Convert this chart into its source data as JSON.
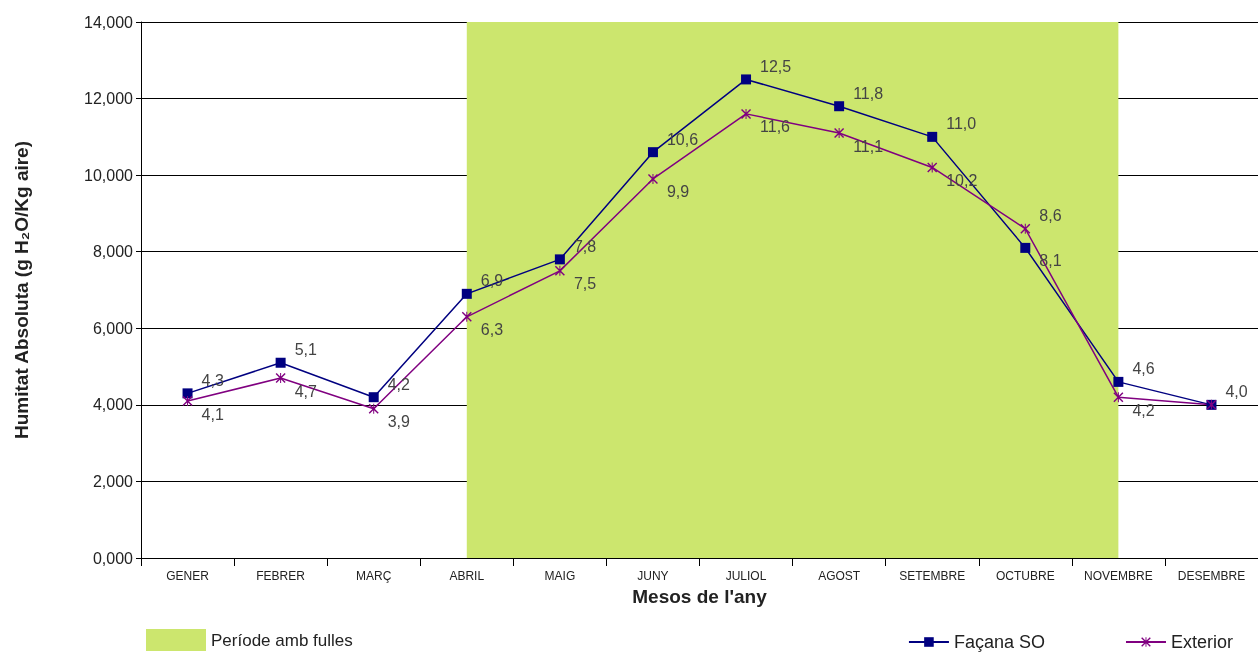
{
  "chart_data": {
    "type": "line",
    "ylabel": "Humitat Absoluta (g H₂O/Kg aire)",
    "xlabel": "Mesos de l'any",
    "categories": [
      "GENER",
      "FEBRER",
      "MARÇ",
      "ABRIL",
      "MAIG",
      "JUNY",
      "JULIOL",
      "AGOST",
      "SETEMBRE",
      "OCTUBRE",
      "NOVEMBRE",
      "DESEMBRE"
    ],
    "series": [
      {
        "name": "Façana SO",
        "color": "#000080",
        "marker": "square",
        "values": [
          4.3,
          5.1,
          4.2,
          6.9,
          7.8,
          10.6,
          12.5,
          11.8,
          11.0,
          8.1,
          4.6,
          4.0
        ],
        "value_labels": [
          "4,3",
          "5,1",
          "4,2",
          "6,9",
          "7,8",
          "10,6",
          "12,5",
          "11,8",
          "11,0",
          "8,1",
          "4,6",
          "4,0"
        ]
      },
      {
        "name": "Exterior",
        "color": "#800080",
        "marker": "cross",
        "values": [
          4.1,
          4.7,
          3.9,
          6.3,
          7.5,
          9.9,
          11.6,
          11.1,
          10.2,
          8.6,
          4.2,
          4.0
        ],
        "value_labels": [
          "4,1",
          "4,7",
          "3,9",
          "6,3",
          "7,5",
          "9,9",
          "11,6",
          "11,1",
          "10,2",
          "8,6",
          "4,2",
          null
        ]
      }
    ],
    "ylim": [
      0,
      14
    ],
    "yticks": [
      {
        "value": 0,
        "label": "0,000"
      },
      {
        "value": 2,
        "label": "2,000"
      },
      {
        "value": 4,
        "label": "4,000"
      },
      {
        "value": 6,
        "label": "6,000"
      },
      {
        "value": 8,
        "label": "8,000"
      },
      {
        "value": 10,
        "label": "10,000"
      },
      {
        "value": 12,
        "label": "12,000"
      },
      {
        "value": 14,
        "label": "14,000"
      }
    ],
    "bands": [
      {
        "axis": "x",
        "from": "ABRIL",
        "to": "NOVEMBRE",
        "label": "Període amb fulles",
        "color": "#cce66e"
      }
    ],
    "grid": "y",
    "legend": "bottom right",
    "line_style": "solid"
  }
}
